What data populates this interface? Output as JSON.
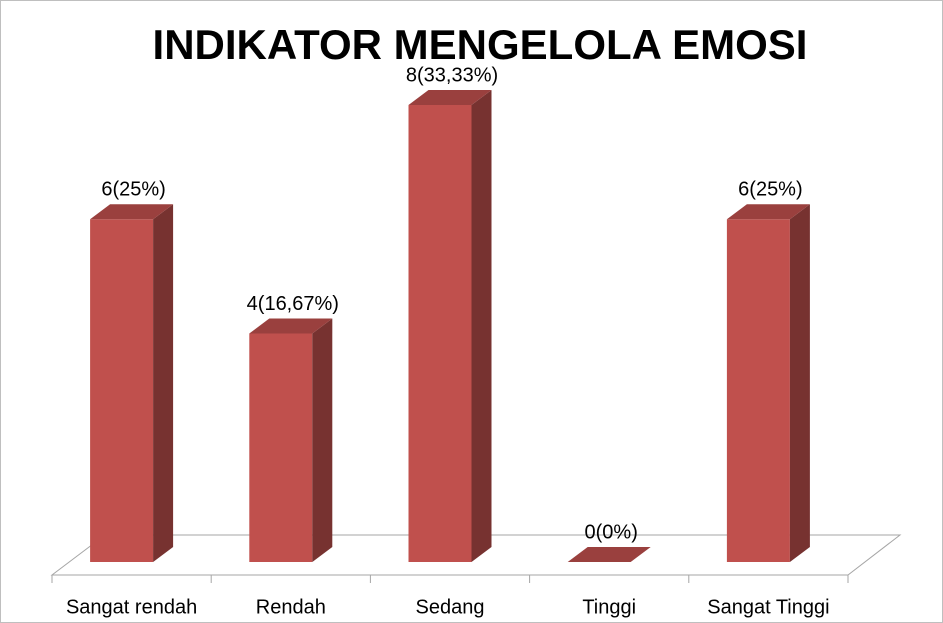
{
  "chart_data": {
    "type": "bar3d",
    "title": "INDIKATOR MENGELOLA EMOSI",
    "categories": [
      "Sangat rendah",
      "Rendah",
      "Sedang",
      "Tinggi",
      "Sangat Tinggi"
    ],
    "values": [
      6,
      4,
      8,
      0,
      6
    ],
    "value_labels": [
      "6(25%)",
      "4(16,67%)",
      "8(33,33%)",
      "0(0%)",
      "6(25%)"
    ],
    "color": "#c0504d"
  }
}
